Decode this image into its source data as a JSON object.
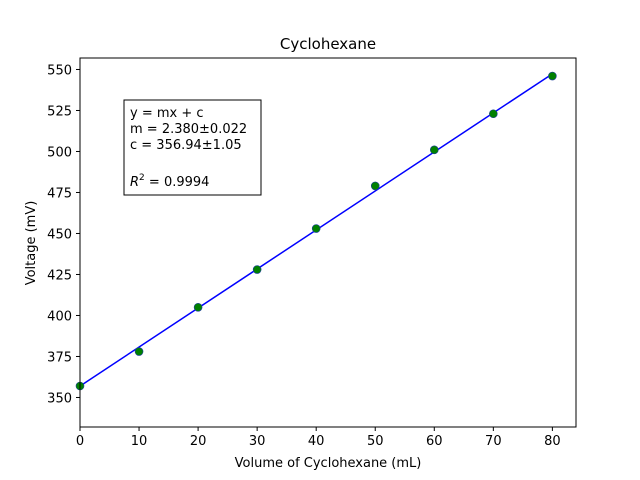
{
  "chart_data": {
    "type": "scatter",
    "title": "Cyclohexane",
    "xlabel": "Volume of Cyclohexane (mL)",
    "ylabel": "Voltage (mV)",
    "xlim": [
      0,
      84
    ],
    "ylim": [
      332,
      557
    ],
    "xticks": [
      0,
      10,
      20,
      30,
      40,
      50,
      60,
      70,
      80
    ],
    "yticks": [
      350,
      375,
      400,
      425,
      450,
      475,
      500,
      525,
      550
    ],
    "grid": false,
    "colors": {
      "points": "#008000",
      "fit_line": "#0000ff",
      "point_edge": "#1f3f9f"
    },
    "series": [
      {
        "x": [
          0,
          10,
          20,
          30,
          40,
          50,
          60,
          70,
          80
        ],
        "y": [
          357,
          378,
          405,
          428,
          453,
          479,
          501,
          523,
          546
        ]
      }
    ],
    "fit": {
      "slope": 2.38,
      "intercept": 356.94,
      "x_range": [
        0,
        80
      ]
    },
    "annotation": {
      "line1": "y = mx + c",
      "line2": "m = 2.380±0.022",
      "line3": "c = 356.94±1.05",
      "r2_symbol": "R",
      "r2_exp": "2",
      "r2_value": " = 0.9994"
    }
  }
}
